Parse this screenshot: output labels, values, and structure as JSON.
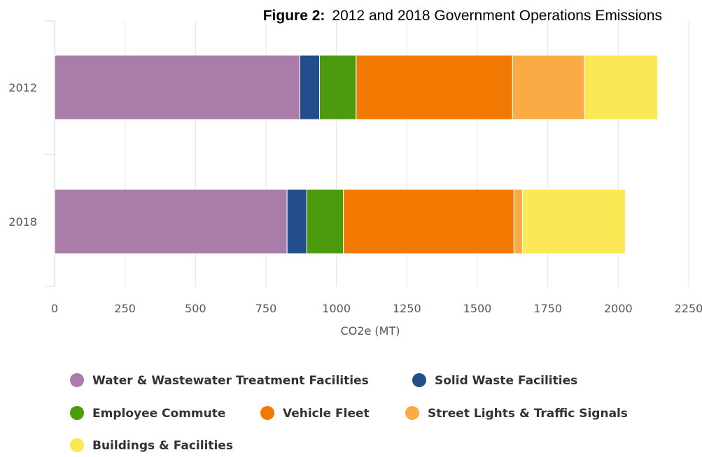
{
  "chart_data": {
    "type": "bar",
    "orientation": "horizontal",
    "stacked": true,
    "title_bold": "Figure 2:",
    "title_rest": "2012 and 2018 Government Operations  Emissions",
    "xlabel": "CO2e (MT)",
    "ylabel": "",
    "xlim": [
      0,
      2250
    ],
    "xticks": [
      "0",
      "250",
      "500",
      "750",
      "1000",
      "1250",
      "1500",
      "1750",
      "2000",
      "2250"
    ],
    "categories": [
      "2012",
      "2018"
    ],
    "grid": true,
    "legend_position": "bottom",
    "series": [
      {
        "name": "Water & Wastewater Treatment Facilities",
        "color": "#a97ca9",
        "values": [
          870,
          825
        ]
      },
      {
        "name": "Solid Waste Facilities",
        "color": "#234e8c",
        "values": [
          70,
          70
        ]
      },
      {
        "name": "Employee Commute",
        "color": "#4c9a0e",
        "values": [
          130,
          130
        ]
      },
      {
        "name": "Vehicle Fleet",
        "color": "#f27a02",
        "values": [
          555,
          605
        ]
      },
      {
        "name": "Street Lights & Traffic Signals",
        "color": "#fbab44",
        "values": [
          255,
          30
        ]
      },
      {
        "name": "Buildings & Facilities",
        "color": "#fce854",
        "values": [
          260,
          365
        ]
      }
    ]
  }
}
